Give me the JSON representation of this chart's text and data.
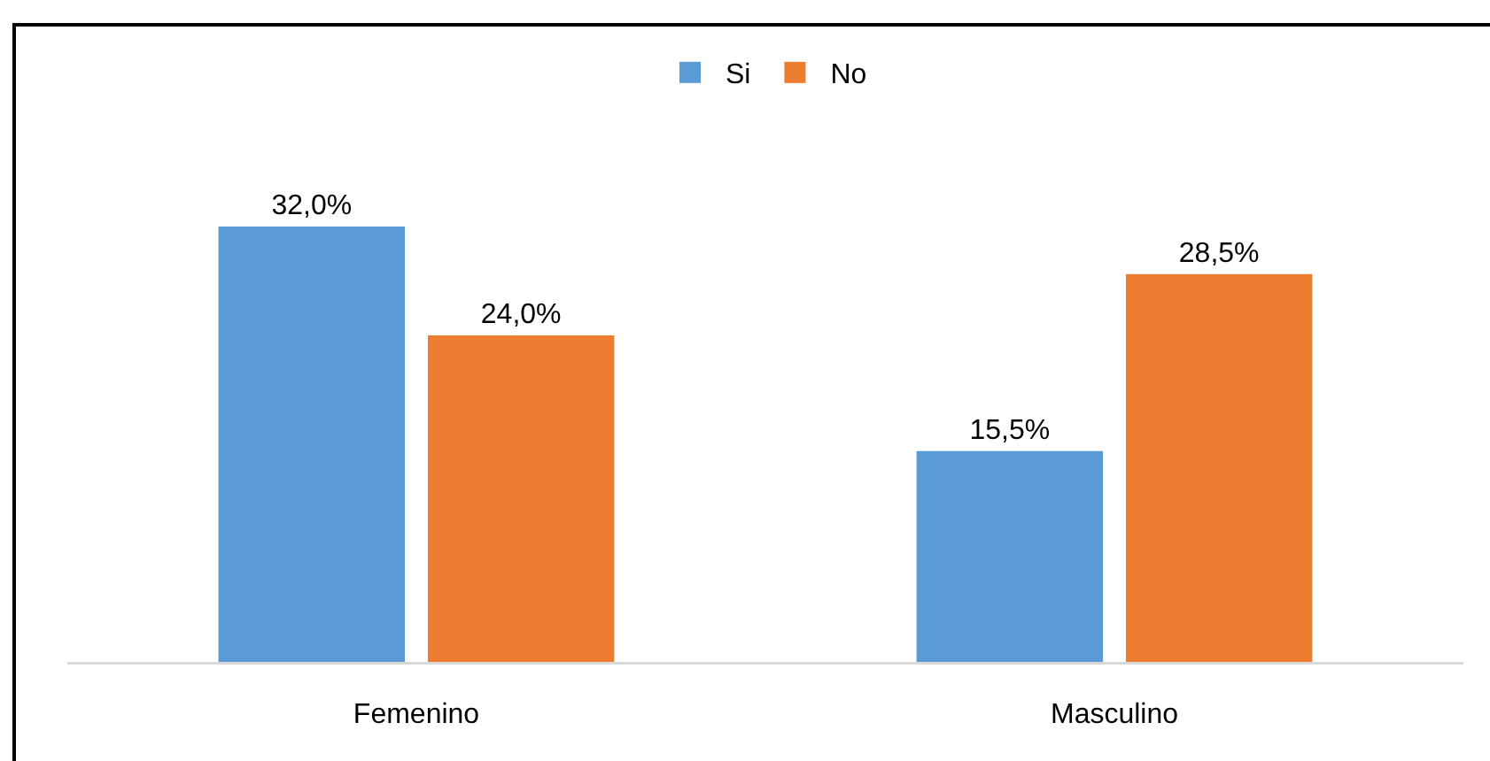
{
  "chart_data": {
    "type": "bar",
    "categories": [
      "Femenino",
      "Masculino"
    ],
    "series": [
      {
        "name": "Si",
        "color": "#5b9bd5",
        "values": [
          32.0,
          15.5
        ],
        "value_labels": [
          "32,0%",
          "15,5%"
        ]
      },
      {
        "name": "No",
        "color": "#ed7d31",
        "values": [
          24.0,
          28.5
        ],
        "value_labels": [
          "24,0%",
          "28,5%"
        ]
      }
    ],
    "tick_labels": "x",
    "grid": false,
    "legend": "top"
  }
}
